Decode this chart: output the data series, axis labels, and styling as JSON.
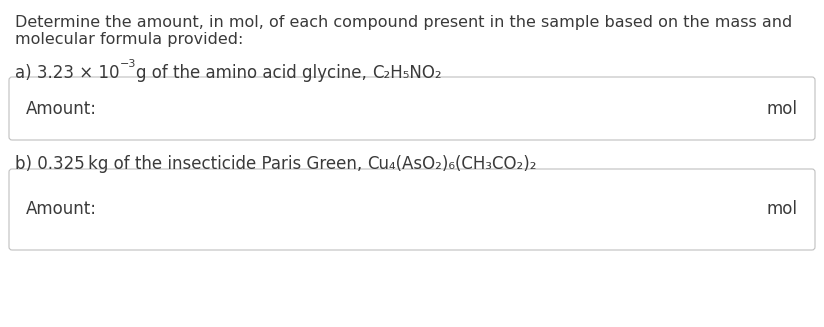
{
  "background_color": "#ffffff",
  "text_color": "#3a3a3a",
  "font_size_intro": 11.5,
  "font_size_part": 12.0,
  "font_size_box": 12.0,
  "intro_line1": "Determine the amount, in mol, of each compound present in the sample based on the mass and",
  "intro_line2": "molecular formula provided:",
  "box_label": "Amount:",
  "box_unit": "mol",
  "box_border_color": "#c0c0c0",
  "box_fill_color": "#ffffff",
  "fig_width": 8.24,
  "fig_height": 3.27,
  "dpi": 100
}
